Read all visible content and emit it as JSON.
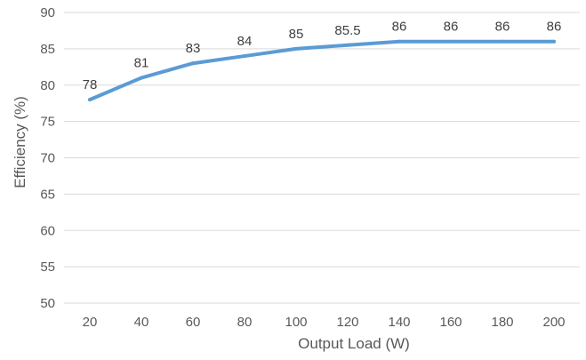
{
  "chart_data": {
    "type": "line",
    "title": "",
    "xlabel": "Output Load (W)",
    "ylabel": "Efficiency (%)",
    "x": [
      20,
      40,
      60,
      80,
      100,
      120,
      140,
      160,
      180,
      200
    ],
    "series": [
      {
        "values": [
          78,
          81,
          83,
          84,
          85,
          85.5,
          86,
          86,
          86,
          86
        ],
        "color": "#5b9bd5"
      }
    ],
    "data_labels": [
      "78",
      "81",
      "83",
      "84",
      "85",
      "85.5",
      "86",
      "86",
      "86",
      "86"
    ],
    "xticks": [
      "20",
      "40",
      "60",
      "80",
      "100",
      "120",
      "140",
      "160",
      "180",
      "200"
    ],
    "yticks": [
      "50",
      "55",
      "60",
      "65",
      "70",
      "75",
      "80",
      "85",
      "90"
    ],
    "ylim": [
      50,
      90
    ],
    "grid": "horizontal",
    "legend": "none"
  }
}
